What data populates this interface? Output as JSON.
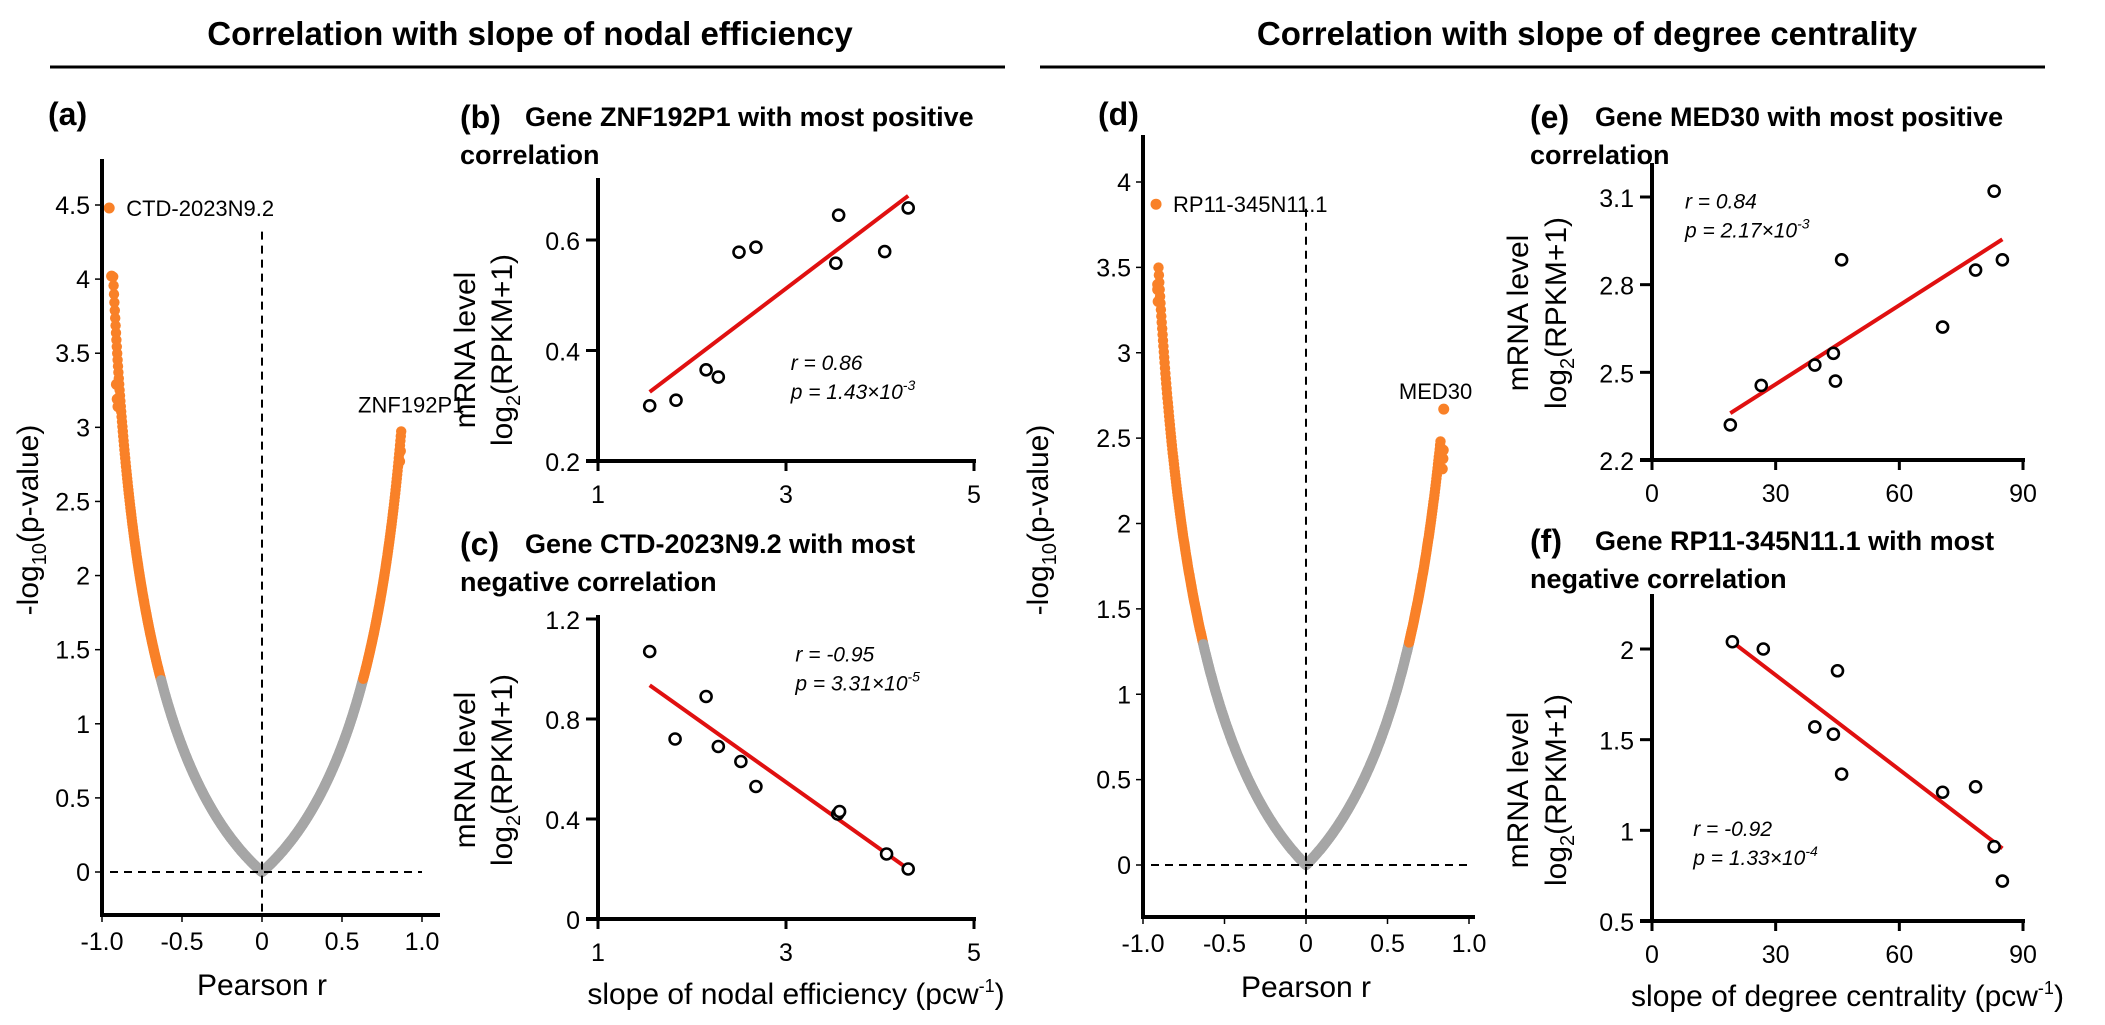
{
  "headers": [
    {
      "text": "Correlation with slope of nodal efficiency"
    },
    {
      "text": "Correlation with slope of degree centrality"
    }
  ],
  "colors": {
    "significant": "#F98128",
    "nonsignificant": "#A6A6A6",
    "fit_line": "#E01010",
    "axis": "#000000"
  },
  "chart_data": [
    {
      "id": "a",
      "type": "scatter",
      "panel_label": "(a)",
      "title": "",
      "xlabel": "Pearson r",
      "ylabel": "-log10(p-value)",
      "xlim": [
        -1.0,
        1.08
      ],
      "ylim": [
        -0.29,
        4.8
      ],
      "xticks": [
        -1.0,
        -0.5,
        0,
        0.5,
        1.0
      ],
      "xtick_labels": [
        "-1.0",
        "-0.5",
        "0",
        "0.5",
        "1.0"
      ],
      "yticks": [
        0,
        0.5,
        1,
        1.5,
        2,
        2.5,
        3,
        3.5,
        4,
        4.5
      ],
      "ytick_labels": [
        "0",
        "0.5",
        "1",
        "1.5",
        "2",
        "2.5",
        "3",
        "3.5",
        "4",
        "4.5"
      ],
      "samples_n": 10,
      "significance_threshold_neglog10p": 1.3,
      "curve_r_range": [
        -0.93,
        0.87
      ],
      "highlight_points": [
        {
          "r": -0.955,
          "y": 4.48,
          "label": "CTD-2023N9.2"
        },
        {
          "r": -0.94,
          "y": 4.02,
          "label": ""
        },
        {
          "r": -0.91,
          "y": 3.29,
          "label": ""
        },
        {
          "r": -0.905,
          "y": 3.19,
          "label": ""
        },
        {
          "r": -0.9,
          "y": 3.14,
          "label": ""
        },
        {
          "r": 0.865,
          "y": 2.84,
          "label": ""
        },
        {
          "r": 0.86,
          "y": 2.77,
          "label": ""
        }
      ],
      "annotations": [
        {
          "text": "ZNF192P1",
          "r": 0.6,
          "y": 3.1
        }
      ],
      "reference_lines": {
        "x": 0,
        "y": 0
      }
    },
    {
      "id": "b",
      "type": "scatter",
      "panel_label": "(b)",
      "title": "Gene ZNF192P1 with most positive correlation",
      "title_lines": [
        "Gene ZNF192P1 with most positive",
        "correlation"
      ],
      "xlabel": "",
      "ylabel": "mRNA level",
      "ylabel2": "log2(RPKM+1)",
      "xlim": [
        1,
        5
      ],
      "ylim": [
        0.2,
        0.71
      ],
      "xticks": [
        1,
        3,
        5
      ],
      "xtick_labels": [
        "1",
        "3",
        "5"
      ],
      "yticks": [
        0.2,
        0.4,
        0.6
      ],
      "ytick_labels": [
        "0.2",
        "0.4",
        "0.6"
      ],
      "points": [
        [
          1.55,
          0.3
        ],
        [
          1.83,
          0.31
        ],
        [
          2.15,
          0.365
        ],
        [
          2.28,
          0.352
        ],
        [
          2.5,
          0.578
        ],
        [
          2.68,
          0.587
        ],
        [
          3.53,
          0.558
        ],
        [
          3.56,
          0.645
        ],
        [
          4.05,
          0.579
        ],
        [
          4.3,
          0.658
        ]
      ],
      "fit_line": [
        [
          1.55,
          0.325
        ],
        [
          4.3,
          0.68
        ]
      ],
      "stats": {
        "r": "r = 0.86",
        "p": "p = 1.43×10",
        "p_exp": "-3"
      },
      "stats_pos": {
        "x": 3.05,
        "y": 0.365
      }
    },
    {
      "id": "c",
      "type": "scatter",
      "panel_label": "(c)",
      "title": "Gene CTD-2023N9.2 with most negative correlation",
      "title_lines": [
        "Gene CTD-2023N9.2 with most",
        "negative correlation"
      ],
      "xlabel": "slope of nodal efficiency (pcw",
      "xlabel_sup": "-1",
      "xlabel_end": ")",
      "ylabel": "mRNA level",
      "ylabel2": "log2(RPKM+1)",
      "xlim": [
        1,
        5
      ],
      "ylim": [
        0,
        1.2
      ],
      "xticks": [
        1,
        3,
        5
      ],
      "xtick_labels": [
        "1",
        "3",
        "5"
      ],
      "yticks": [
        0,
        0.4,
        0.8,
        1.2
      ],
      "ytick_labels": [
        "0",
        "0.4",
        "0.8",
        "1.2"
      ],
      "points": [
        [
          1.55,
          1.07
        ],
        [
          1.82,
          0.72
        ],
        [
          2.15,
          0.89
        ],
        [
          2.28,
          0.69
        ],
        [
          2.52,
          0.63
        ],
        [
          2.68,
          0.53
        ],
        [
          3.55,
          0.42
        ],
        [
          3.57,
          0.43
        ],
        [
          4.07,
          0.26
        ],
        [
          4.3,
          0.2
        ]
      ],
      "fit_line": [
        [
          1.55,
          0.935
        ],
        [
          4.3,
          0.2
        ]
      ],
      "stats": {
        "r": "r = -0.95",
        "p": "p = 3.31×10",
        "p_exp": "-5"
      },
      "stats_pos": {
        "x": 3.1,
        "y": 1.03
      }
    },
    {
      "id": "d",
      "type": "scatter",
      "panel_label": "(d)",
      "title": "",
      "xlabel": "Pearson r",
      "ylabel": "-log10(p-value)",
      "xlim": [
        -1.0,
        1.08
      ],
      "ylim": [
        -0.3,
        4.27
      ],
      "xticks": [
        -1.0,
        -0.5,
        0,
        0.5,
        1.0
      ],
      "xtick_labels": [
        "-1.0",
        "-0.5",
        "0",
        "0.5",
        "1.0"
      ],
      "yticks": [
        0,
        0.5,
        1,
        1.5,
        2,
        2.5,
        3,
        3.5,
        4
      ],
      "ytick_labels": [
        "0",
        "0.5",
        "1",
        "1.5",
        "2",
        "2.5",
        "3",
        "3.5",
        "4"
      ],
      "samples_n": 10,
      "significance_threshold_neglog10p": 1.3,
      "curve_r_range": [
        -0.905,
        0.825
      ],
      "highlight_points": [
        {
          "r": -0.92,
          "y": 3.87,
          "label": "RP11-345N11.1"
        },
        {
          "r": -0.91,
          "y": 3.4,
          "label": ""
        },
        {
          "r": -0.91,
          "y": 3.37,
          "label": ""
        },
        {
          "r": -0.907,
          "y": 3.3,
          "label": ""
        },
        {
          "r": 0.842,
          "y": 2.43,
          "label": ""
        },
        {
          "r": 0.84,
          "y": 2.38,
          "label": ""
        },
        {
          "r": 0.836,
          "y": 2.32,
          "label": ""
        },
        {
          "r": 0.845,
          "y": 2.67,
          "label": ""
        }
      ],
      "annotations": [
        {
          "text": "MED30",
          "r": 0.57,
          "y": 2.73
        }
      ],
      "reference_lines": {
        "x": 0,
        "y": 0
      }
    },
    {
      "id": "e",
      "type": "scatter",
      "panel_label": "(e)",
      "title": "Gene MED30 with most positive correlation",
      "title_lines": [
        "Gene MED30 with most positive",
        "correlation"
      ],
      "xlabel": "",
      "ylabel": "mRNA level",
      "ylabel2": "log2(RPKM+1)",
      "xlim": [
        0,
        90
      ],
      "ylim": [
        2.2,
        3.2
      ],
      "xticks": [
        0,
        30,
        60,
        90
      ],
      "xtick_labels": [
        "0",
        "30",
        "60",
        "90"
      ],
      "yticks": [
        2.2,
        2.5,
        2.8,
        3.1
      ],
      "ytick_labels": [
        "2.2",
        "2.5",
        "2.8",
        "3.1"
      ],
      "points": [
        [
          19,
          2.32
        ],
        [
          26.5,
          2.455
        ],
        [
          39.5,
          2.525
        ],
        [
          44,
          2.565
        ],
        [
          44.5,
          2.47
        ],
        [
          46,
          2.885
        ],
        [
          70.5,
          2.655
        ],
        [
          78.5,
          2.85
        ],
        [
          83,
          3.12
        ],
        [
          85,
          2.885
        ]
      ],
      "fit_line": [
        [
          19,
          2.36
        ],
        [
          85,
          2.955
        ]
      ],
      "stats": {
        "r": "r = 0.84",
        "p": "p = 2.17×10",
        "p_exp": "-3"
      },
      "stats_pos": {
        "x": 8,
        "y": 3.06
      }
    },
    {
      "id": "f",
      "type": "scatter",
      "panel_label": "(f)",
      "title": "Gene RP11-345N11.1 with most negative correlation",
      "title_lines": [
        "Gene RP11-345N11.1 with most",
        "negative correlation"
      ],
      "xlabel": "slope of degree centrality (pcw",
      "xlabel_sup": "-1",
      "xlabel_end": ")",
      "ylabel": "mRNA level",
      "ylabel2": "log2(RPKM+1)",
      "xlim": [
        0,
        90
      ],
      "ylim": [
        0.5,
        2.25
      ],
      "xticks": [
        0,
        30,
        60,
        90
      ],
      "xtick_labels": [
        "0",
        "30",
        "60",
        "90"
      ],
      "yticks": [
        0.5,
        1,
        1.5,
        2
      ],
      "ytick_labels": [
        "0.5",
        "1",
        "1.5",
        "2"
      ],
      "points": [
        [
          19.5,
          2.04
        ],
        [
          27,
          2.0
        ],
        [
          39.5,
          1.57
        ],
        [
          44,
          1.53
        ],
        [
          45,
          1.88
        ],
        [
          46,
          1.31
        ],
        [
          70.5,
          1.21
        ],
        [
          78.5,
          1.24
        ],
        [
          83,
          0.91
        ],
        [
          85,
          0.72
        ]
      ],
      "fit_line": [
        [
          20,
          2.03
        ],
        [
          85,
          0.9
        ]
      ],
      "stats": {
        "r": "r = -0.92",
        "p": "p = 1.33×10",
        "p_exp": "-4"
      },
      "stats_pos": {
        "x": 10,
        "y": 0.97
      }
    }
  ]
}
